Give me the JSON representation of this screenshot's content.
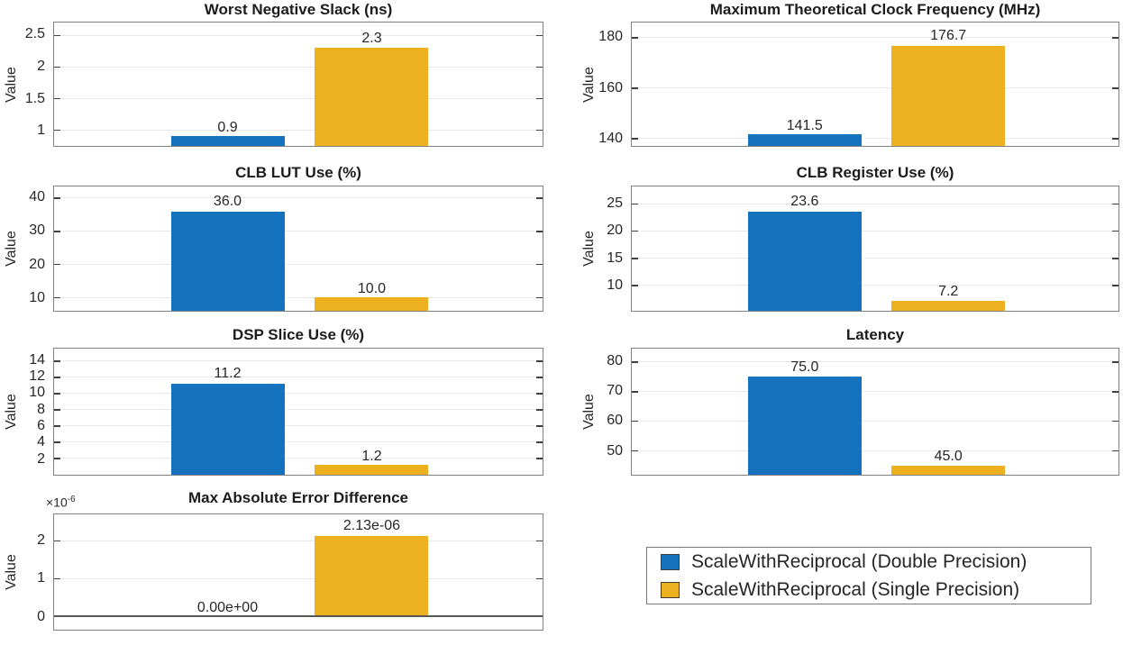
{
  "figure": {
    "background": "#ffffff"
  },
  "colors": {
    "series_double_precision": "#1473BC",
    "series_single_precision": "#EDB120",
    "grid": "#e8e8e8",
    "axis_border": "#818181",
    "tick": "#3f3f3f",
    "text": "#262626",
    "zero_baseline": "#575757"
  },
  "chart_data": [
    {
      "type": "bar",
      "title": "Worst Negative Slack (ns)",
      "ylabel": "Value",
      "categories": [
        "ScaleWithReciprocal (Double Precision)",
        "ScaleWithReciprocal (Single Precision)"
      ],
      "values": [
        0.9,
        2.3
      ],
      "value_labels": [
        "0.9",
        "2.3"
      ],
      "ylim": [
        0.75,
        2.7
      ],
      "yticks": [
        1,
        1.5,
        2,
        2.5
      ],
      "ytick_labels": [
        "1",
        "1.5",
        "2",
        "2.5"
      ],
      "grid": "horizontal"
    },
    {
      "type": "bar",
      "title": "Maximum Theoretical Clock Frequency (MHz)",
      "ylabel": "Value",
      "categories": [
        "ScaleWithReciprocal (Double Precision)",
        "ScaleWithReciprocal (Single Precision)"
      ],
      "values": [
        141.5,
        176.7
      ],
      "value_labels": [
        "141.5",
        "176.7"
      ],
      "ylim": [
        137,
        186
      ],
      "yticks": [
        140,
        160,
        180
      ],
      "ytick_labels": [
        "140",
        "160",
        "180"
      ],
      "grid": "horizontal"
    },
    {
      "type": "bar",
      "title": "CLB LUT Use (%)",
      "ylabel": "Value",
      "categories": [
        "ScaleWithReciprocal (Double Precision)",
        "ScaleWithReciprocal (Single Precision)"
      ],
      "values": [
        36.0,
        10.0
      ],
      "value_labels": [
        "36.0",
        "10.0"
      ],
      "ylim": [
        6,
        43.5
      ],
      "yticks": [
        10,
        20,
        30,
        40
      ],
      "ytick_labels": [
        "10",
        "20",
        "30",
        "40"
      ],
      "grid": "horizontal"
    },
    {
      "type": "bar",
      "title": "CLB Register Use (%)",
      "ylabel": "Value",
      "categories": [
        "ScaleWithReciprocal (Double Precision)",
        "ScaleWithReciprocal (Single Precision)"
      ],
      "values": [
        23.6,
        7.2
      ],
      "value_labels": [
        "23.6",
        "7.2"
      ],
      "ylim": [
        5.3,
        28.2
      ],
      "yticks": [
        10,
        15,
        20,
        25
      ],
      "ytick_labels": [
        "10",
        "15",
        "20",
        "25"
      ],
      "grid": "horizontal"
    },
    {
      "type": "bar",
      "title": "DSP Slice Use (%)",
      "ylabel": "Value",
      "categories": [
        "ScaleWithReciprocal (Double Precision)",
        "ScaleWithReciprocal (Single Precision)"
      ],
      "values": [
        11.2,
        1.2
      ],
      "value_labels": [
        "11.2",
        "1.2"
      ],
      "ylim": [
        0,
        15.5
      ],
      "yticks": [
        2,
        4,
        6,
        8,
        10,
        12,
        14
      ],
      "ytick_labels": [
        "2",
        "4",
        "6",
        "8",
        "10",
        "12",
        "14"
      ],
      "grid": "horizontal"
    },
    {
      "type": "bar",
      "title": "Latency",
      "ylabel": "Value",
      "categories": [
        "ScaleWithReciprocal (Double Precision)",
        "ScaleWithReciprocal (Single Precision)"
      ],
      "values": [
        75.0,
        45.0
      ],
      "value_labels": [
        "75.0",
        "45.0"
      ],
      "ylim": [
        41.8,
        84.5
      ],
      "yticks": [
        50,
        60,
        70,
        80
      ],
      "ytick_labels": [
        "50",
        "60",
        "70",
        "80"
      ],
      "grid": "horizontal"
    },
    {
      "type": "bar",
      "title": "Max Absolute Error Difference",
      "ylabel": "Value",
      "categories": [
        "ScaleWithReciprocal (Double Precision)",
        "ScaleWithReciprocal (Single Precision)"
      ],
      "values": [
        0.0,
        2.13e-06
      ],
      "value_labels": [
        "0.00e+00",
        "2.13e-06"
      ],
      "ylim": [
        -3.5e-07,
        2.7e-06
      ],
      "yticks": [
        0,
        1e-06,
        2e-06
      ],
      "ytick_labels": [
        "0",
        "1",
        "2"
      ],
      "grid": "horizontal",
      "show_zero_baseline": true,
      "multiplier_base": "×10",
      "multiplier_exp": "-6"
    }
  ],
  "legend": {
    "entries": [
      {
        "label": "ScaleWithReciprocal (Double Precision)",
        "color": "#1473BC"
      },
      {
        "label": "ScaleWithReciprocal (Single Precision)",
        "color": "#EDB120"
      }
    ],
    "position": "bottom-right"
  }
}
